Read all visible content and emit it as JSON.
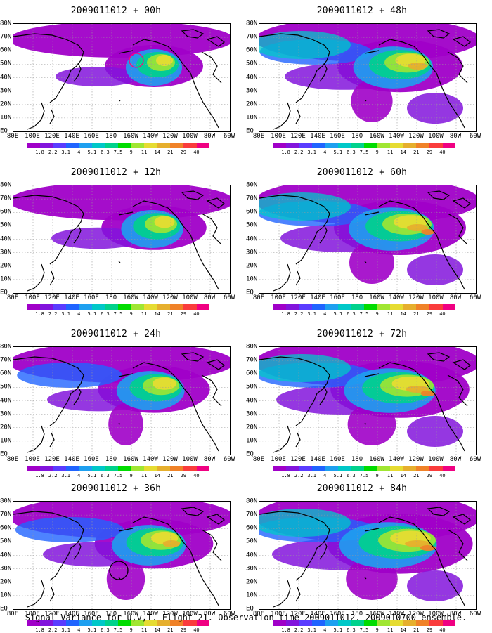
{
  "caption": "Signal Variance for u,v,T. Flight 21. Observation time 2009011012. 2009010700 ensemble.",
  "lat_labels": [
    "80N",
    "70N",
    "60N",
    "50N",
    "40N",
    "30N",
    "20N",
    "10N",
    "EQ"
  ],
  "lon_labels": [
    "80E",
    "100E",
    "120E",
    "140E",
    "160E",
    "180",
    "160W",
    "140W",
    "120W",
    "100W",
    "80W",
    "60W"
  ],
  "colorbar": {
    "labels": [
      "1.8",
      "2.2",
      "3.1",
      "4",
      "5.1",
      "6.3",
      "7.5",
      "9",
      "11",
      "14",
      "21",
      "29",
      "40"
    ],
    "colors": [
      "#a000c8",
      "#8214dc",
      "#5a3cff",
      "#2064ff",
      "#1ea0f0",
      "#00c8c8",
      "#00d28c",
      "#00dc00",
      "#a0e632",
      "#e6dc32",
      "#e6af2d",
      "#f08228",
      "#fa3c3c",
      "#f00082"
    ]
  },
  "panels": [
    {
      "title": "2009011012 + 00h",
      "lead_hours": 0,
      "intensity": 0.55,
      "circle": true,
      "circle_color": "#ff0080"
    },
    {
      "title": "2009011012 + 48h",
      "lead_hours": 48,
      "intensity": 0.7,
      "circle": false
    },
    {
      "title": "2009011012 + 12h",
      "lead_hours": 12,
      "intensity": 0.6,
      "circle": false
    },
    {
      "title": "2009011012 + 60h",
      "lead_hours": 60,
      "intensity": 0.75,
      "circle": false
    },
    {
      "title": "2009011012 + 24h",
      "lead_hours": 24,
      "intensity": 0.65,
      "circle": false
    },
    {
      "title": "2009011012 + 72h",
      "lead_hours": 72,
      "intensity": 0.8,
      "circle": false
    },
    {
      "title": "2009011012 + 36h",
      "lead_hours": 36,
      "intensity": 0.68,
      "circle": true,
      "circle_color": "#000000"
    },
    {
      "title": "2009011012 + 84h",
      "lead_hours": 84,
      "intensity": 0.82,
      "circle": false
    }
  ]
}
